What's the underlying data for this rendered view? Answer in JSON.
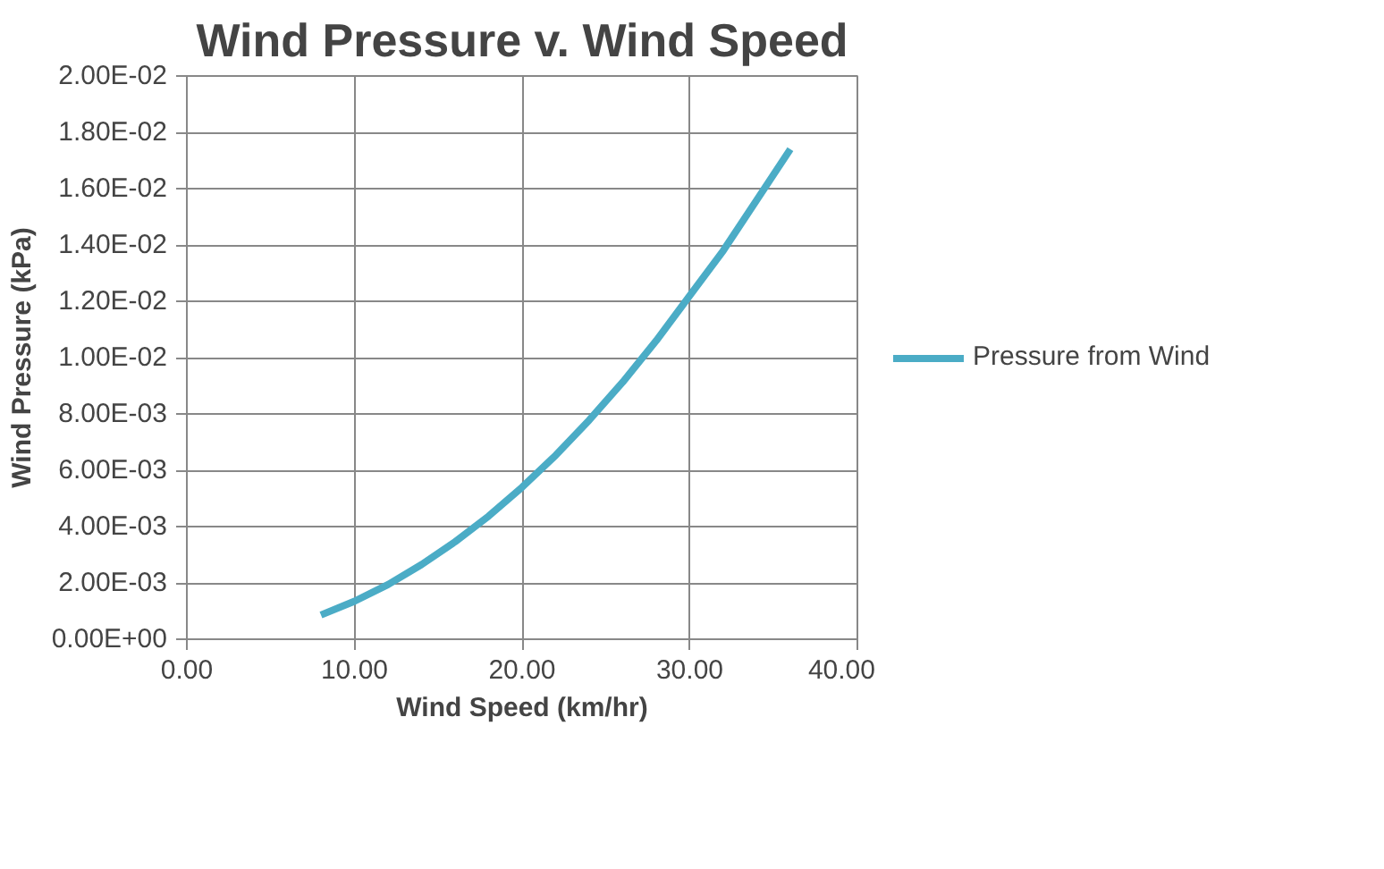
{
  "chart_data": {
    "type": "line",
    "title": "Wind Pressure v. Wind Speed",
    "xlabel": "Wind Speed (km/hr)",
    "ylabel": "Wind Pressure (kPa)",
    "x": [
      8,
      10,
      12,
      14,
      16,
      18,
      20,
      22,
      24,
      26,
      28,
      30,
      32,
      34,
      36
    ],
    "series": [
      {
        "name": "Pressure from Wind",
        "color": "#4bacc6",
        "values": [
          0.00086,
          0.00135,
          0.00194,
          0.00265,
          0.00346,
          0.00437,
          0.0054,
          0.00653,
          0.00778,
          0.00913,
          0.0106,
          0.0122,
          0.0138,
          0.0156,
          0.0174
        ]
      }
    ],
    "xlim": [
      0,
      40
    ],
    "xticks": [
      {
        "value": 0,
        "label": "0.00"
      },
      {
        "value": 10,
        "label": "10.00"
      },
      {
        "value": 20,
        "label": "20.00"
      },
      {
        "value": 30,
        "label": "30.00"
      },
      {
        "value": 40,
        "label": "40.00"
      }
    ],
    "ylim": [
      0,
      0.02
    ],
    "yticks": [
      {
        "value": 0,
        "label": "0.00E+00"
      },
      {
        "value": 0.002,
        "label": "2.00E-03"
      },
      {
        "value": 0.004,
        "label": "4.00E-03"
      },
      {
        "value": 0.006,
        "label": "6.00E-03"
      },
      {
        "value": 0.008,
        "label": "8.00E-03"
      },
      {
        "value": 0.01,
        "label": "1.00E-02"
      },
      {
        "value": 0.012,
        "label": "1.20E-02"
      },
      {
        "value": 0.014,
        "label": "1.40E-02"
      },
      {
        "value": 0.016,
        "label": "1.60E-02"
      },
      {
        "value": 0.018,
        "label": "1.80E-02"
      },
      {
        "value": 0.02,
        "label": "2.00E-02"
      }
    ],
    "grid": true,
    "legend": "right",
    "marker": "none",
    "line_style": "solid"
  }
}
